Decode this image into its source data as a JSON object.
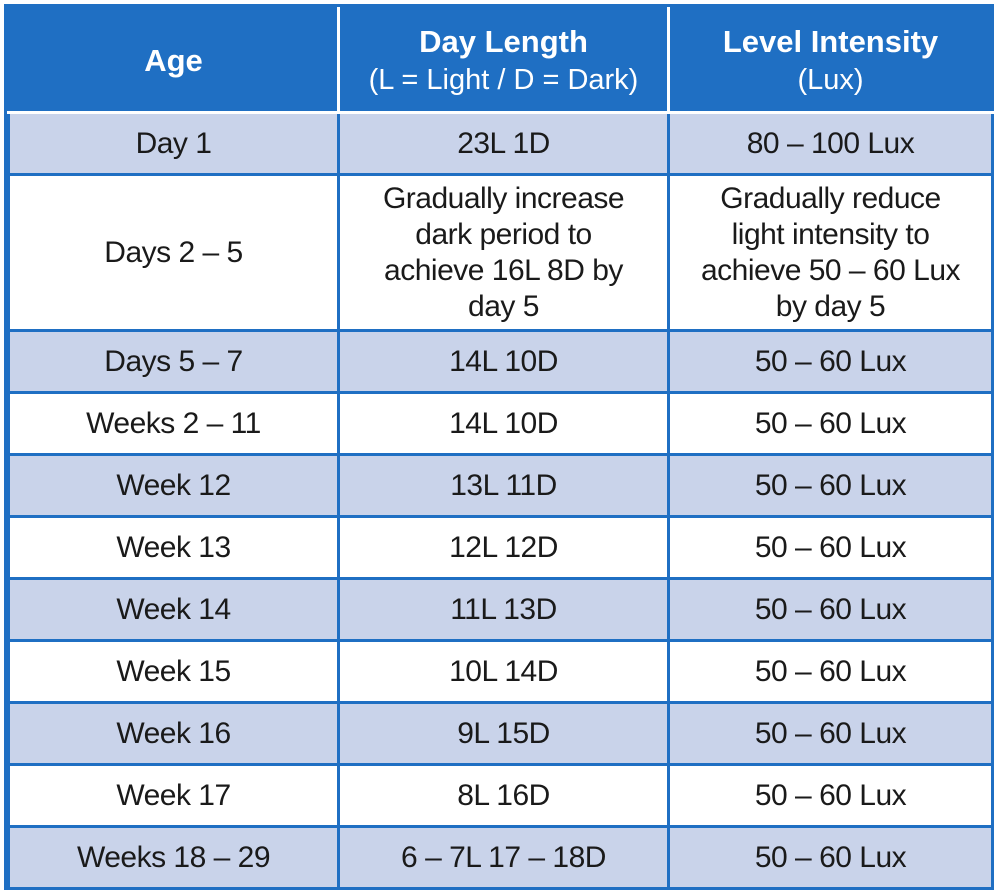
{
  "table": {
    "headers": {
      "age": "Age",
      "day_length": "Day Length",
      "day_length_sub": "(L = Light / D = Dark)",
      "level_intensity": "Level Intensity",
      "level_intensity_sub": "(Lux)"
    },
    "rows": [
      {
        "age": "Day 1",
        "day_length": "23L 1D",
        "intensity": "80 – 100 Lux"
      },
      {
        "age": "Days 2 – 5",
        "day_length": "Gradually increase dark period to achieve 16L 8D by day 5",
        "intensity": "Gradually reduce light intensity to achieve 50 – 60 Lux by day 5"
      },
      {
        "age": "Days 5 – 7",
        "day_length": "14L 10D",
        "intensity": "50 – 60 Lux"
      },
      {
        "age": "Weeks 2 – 11",
        "day_length": "14L 10D",
        "intensity": "50 – 60 Lux"
      },
      {
        "age": "Week 12",
        "day_length": "13L 11D",
        "intensity": "50 – 60 Lux"
      },
      {
        "age": "Week 13",
        "day_length": "12L 12D",
        "intensity": "50 – 60 Lux"
      },
      {
        "age": "Week 14",
        "day_length": "11L 13D",
        "intensity": "50 – 60 Lux"
      },
      {
        "age": "Week 15",
        "day_length": "10L 14D",
        "intensity": "50 – 60 Lux"
      },
      {
        "age": "Week 16",
        "day_length": "9L 15D",
        "intensity": "50 – 60 Lux"
      },
      {
        "age": "Week 17",
        "day_length": "8L 16D",
        "intensity": "50 – 60 Lux"
      },
      {
        "age": "Weeks 18 – 29",
        "day_length": "6 – 7L 17 – 18D",
        "intensity": "50 – 60 Lux"
      }
    ]
  },
  "colors": {
    "header_bg": "#1f6fc3",
    "header_text": "#ffffff",
    "shaded_row": "#c9d3ea",
    "plain_row": "#ffffff",
    "border": "#1f6fc3"
  }
}
